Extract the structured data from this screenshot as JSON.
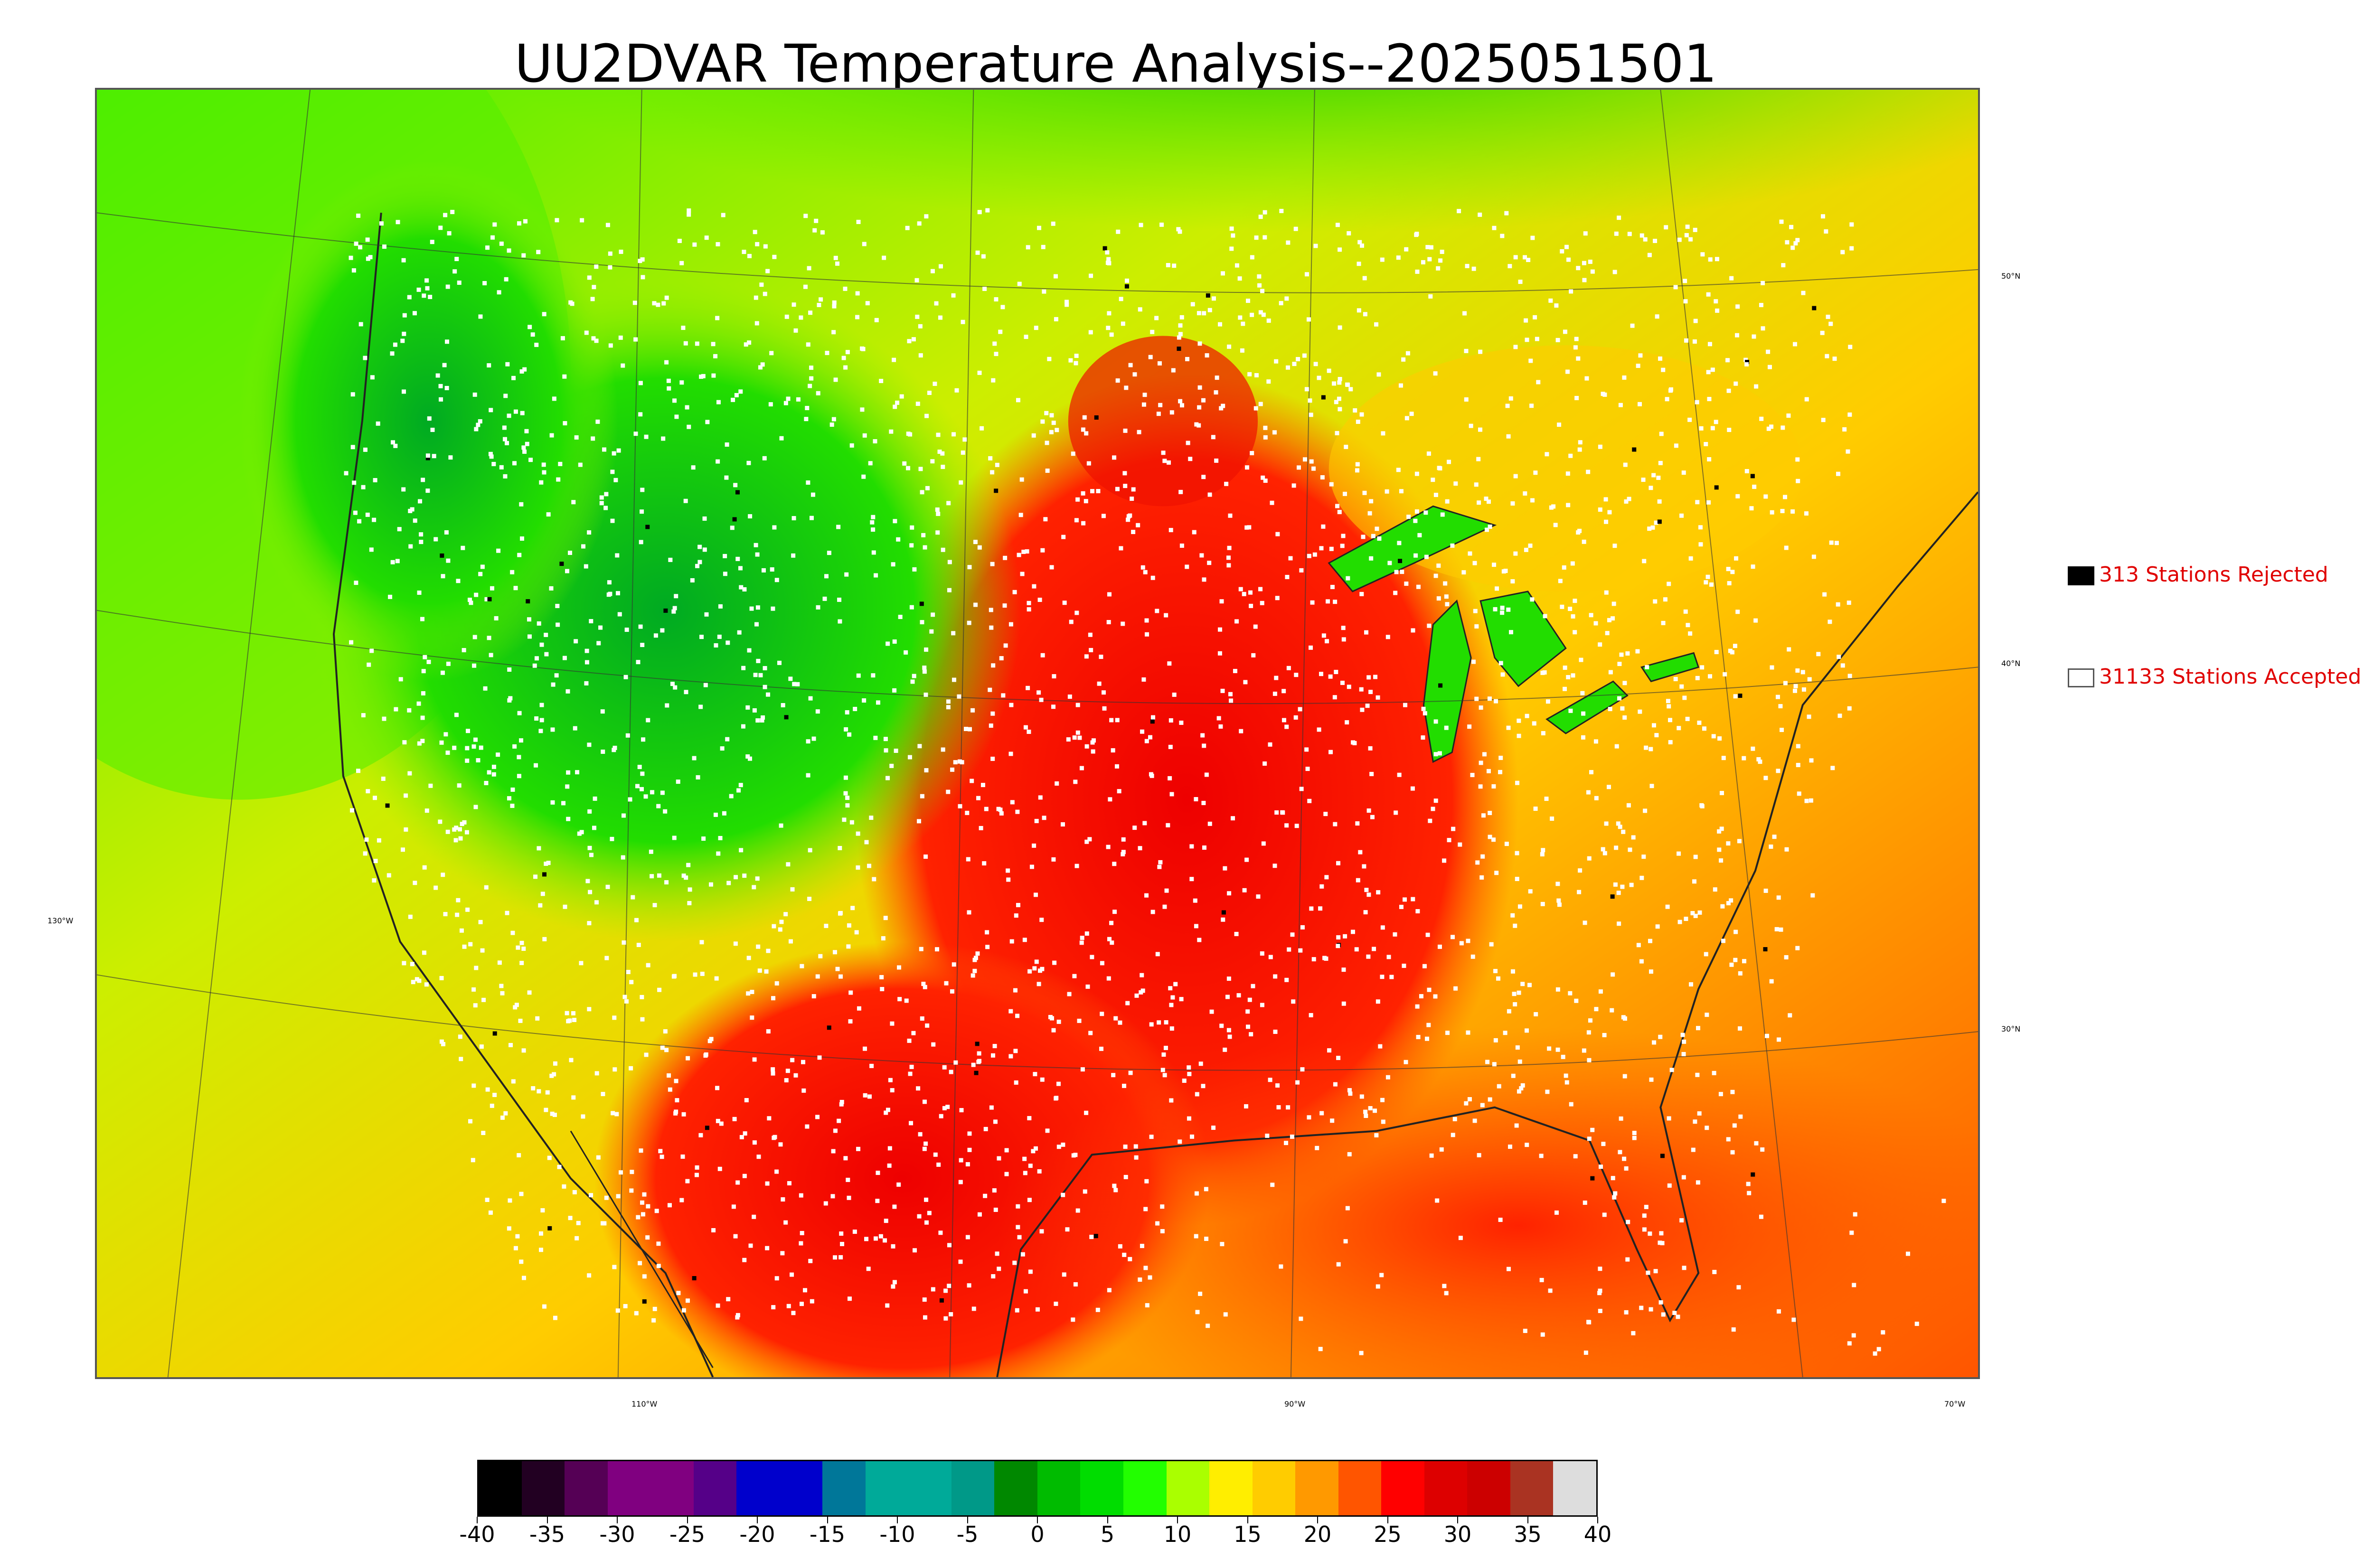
{
  "title": "UU2DVAR Temperature Analysis--2025051501",
  "legend": {
    "rejected": {
      "label": "313 Stations Rejected",
      "swatch_color": "#000000"
    },
    "accepted": {
      "label": "31133 Stations Accepted",
      "swatch_color": "#ffffff"
    }
  },
  "longitude_labels": [
    "110°W",
    "90°W",
    "70°W"
  ],
  "latitude_labels": [
    "50°N",
    "40°N",
    "30°N",
    "130°W"
  ],
  "colorbar": {
    "tick_labels": [
      "-40",
      "-35",
      "-30",
      "-25",
      "-20",
      "-15",
      "-10",
      "-5",
      "0",
      "5",
      "10",
      "15",
      "20",
      "25",
      "30",
      "35",
      "40"
    ],
    "colors": [
      "#000000",
      "#220022",
      "#550055",
      "#800080",
      "#800080",
      "#550088",
      "#0000cc",
      "#0000cc",
      "#007799",
      "#00aa99",
      "#00aa99",
      "#009988",
      "#008800",
      "#00bb00",
      "#00dd00",
      "#22ff00",
      "#aaff00",
      "#ffee00",
      "#ffcc00",
      "#ff9900",
      "#ff5500",
      "#ff0000",
      "#dd0000",
      "#cc0000",
      "#aa3322",
      "#dddddd"
    ],
    "units_hint": "",
    "range": [
      -40,
      40
    ]
  },
  "colors": {
    "accent_text": "#e00000",
    "cold": "#00aa00",
    "warm": "#dd0000"
  }
}
